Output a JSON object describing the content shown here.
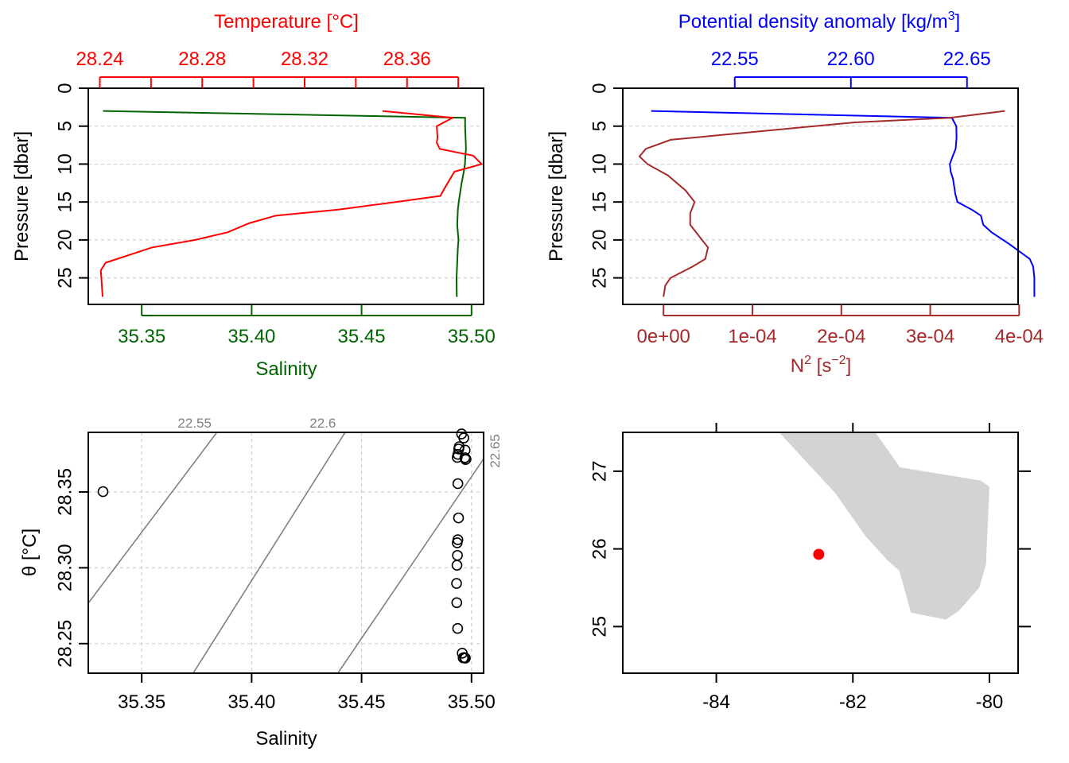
{
  "colors": {
    "temperature": "#ff0000",
    "salinity": "#006400",
    "density": "#0000ff",
    "n2": "#a52a2a",
    "isopycnal": "#808080",
    "land": "#d3d3d3",
    "station": "#ff0000",
    "grid": "#c8c8c8"
  },
  "chart_data": [
    {
      "type": "line",
      "panel": "temperature-salinity-profile",
      "top_axis_label": "Temperature [°C]",
      "bottom_axis_label": "Salinity",
      "ylabel": "Pressure [dbar]",
      "top_ticks": [
        "28.24",
        "28.28",
        "28.32",
        "28.36"
      ],
      "top_tick_values": [
        28.24,
        28.26,
        28.28,
        28.3,
        28.32,
        28.34,
        28.36,
        28.38
      ],
      "bottom_ticks": [
        "35.35",
        "35.40",
        "35.45",
        "35.50"
      ],
      "bottom_tick_values": [
        35.35,
        35.4,
        35.45,
        35.5
      ],
      "y_ticks": [
        "0",
        "5",
        "10",
        "15",
        "20",
        "25"
      ],
      "y_tick_values": [
        0,
        5,
        10,
        15,
        20,
        25
      ],
      "xlim_temperature": [
        28.2355,
        28.3899
      ],
      "xlim_salinity": [
        35.3257,
        35.5055
      ],
      "ylim": [
        0,
        28.5
      ],
      "y_reversed": true,
      "grid": true,
      "series": [
        {
          "name": "Temperature",
          "axis": "top",
          "x": [
            28.3504,
            28.3778,
            28.3716,
            28.3719,
            28.3716,
            28.3728,
            28.3859,
            28.3891,
            28.3785,
            28.375,
            28.373,
            28.3557,
            28.3331,
            28.3087,
            28.2983,
            28.2899,
            28.2772,
            28.2603,
            28.2423,
            28.2404,
            28.2408,
            28.2411
          ],
          "y": [
            3.0,
            3.9,
            5.0,
            6.5,
            7.2,
            8.0,
            8.9,
            10.0,
            11.0,
            13.0,
            14.2,
            15.0,
            16.0,
            16.8,
            17.8,
            19.0,
            20.0,
            21.0,
            23.0,
            24.0,
            26.0,
            27.5
          ]
        },
        {
          "name": "Salinity",
          "axis": "bottom",
          "x": [
            35.3324,
            35.4971,
            35.4971,
            35.4973,
            35.4975,
            35.4972,
            35.497,
            35.4965,
            35.4955,
            35.4942,
            35.4938,
            35.4935,
            35.4938,
            35.4941,
            35.4938,
            35.4935,
            35.4932,
            35.4933
          ],
          "y": [
            3.0,
            3.9,
            5.0,
            6.5,
            8.0,
            9.0,
            10.0,
            11.0,
            12.5,
            15.0,
            16.0,
            18.0,
            19.0,
            20.0,
            21.0,
            23.0,
            25.0,
            27.5
          ]
        }
      ]
    },
    {
      "type": "line",
      "panel": "density-n2-profile",
      "top_axis_label": "Potential density anomaly [kg/m",
      "top_axis_label_sup": "3",
      "top_axis_label_end": "]",
      "bottom_axis_label": "N",
      "bottom_axis_label_sup1": "2",
      "bottom_axis_label_mid": " [s",
      "bottom_axis_label_sup2": "−2",
      "bottom_axis_label_end": "]",
      "ylabel": "Pressure [dbar]",
      "top_ticks": [
        "22.55",
        "22.60",
        "22.65"
      ],
      "top_tick_values": [
        22.55,
        22.6,
        22.65
      ],
      "bottom_ticks": [
        "0e+00",
        "1e-04",
        "2e-04",
        "3e-04",
        "4e-04"
      ],
      "bottom_tick_values": [
        0,
        0.0001,
        0.0002,
        0.0003,
        0.0004
      ],
      "y_ticks": [
        "0",
        "5",
        "10",
        "15",
        "20",
        "25"
      ],
      "y_tick_values": [
        0,
        5,
        10,
        15,
        20,
        25
      ],
      "xlim_density": [
        22.5018,
        22.672
      ],
      "xlim_n2": [
        -4.58e-05,
        0.0003988
      ],
      "ylim": [
        0,
        28.5
      ],
      "y_reversed": true,
      "grid": true,
      "series": [
        {
          "name": "Potential density anomaly",
          "axis": "top",
          "x": [
            22.514,
            22.6435,
            22.6454,
            22.6455,
            22.6451,
            22.6438,
            22.6426,
            22.643,
            22.644,
            22.645,
            22.6459,
            22.652,
            22.656,
            22.657,
            22.6606,
            22.668,
            22.677,
            22.6785,
            22.679,
            22.679
          ],
          "y": [
            3.0,
            3.9,
            5.0,
            6.5,
            8.0,
            9.0,
            10.0,
            11.0,
            12.0,
            14.0,
            15.0,
            16.0,
            16.8,
            18.0,
            19.0,
            20.5,
            22.5,
            23.5,
            25.0,
            27.5
          ]
        },
        {
          "name": "N2",
          "axis": "bottom",
          "x": [
            0.000384,
            0.000322,
            0.000215,
            8e-05,
            8e-06,
            -2e-05,
            -2.7e-05,
            -1.8e-05,
            5e-06,
            2.5e-05,
            3.5e-05,
            3e-05,
            3e-05,
            4e-05,
            5e-05,
            4.7e-05,
            3.3e-05,
            8e-06,
            2e-06,
            0.0
          ],
          "y": [
            3.0,
            3.9,
            4.5,
            6.0,
            6.8,
            8.0,
            9.0,
            10.0,
            11.5,
            13.5,
            15.0,
            16.5,
            18.0,
            19.5,
            21.0,
            22.5,
            23.5,
            25.0,
            26.0,
            27.5
          ]
        }
      ]
    },
    {
      "type": "scatter",
      "panel": "ts-diagram",
      "xlabel": "Salinity",
      "ylabel_symbol": "θ",
      "ylabel_unit": " [°C]",
      "x_ticks": [
        "35.35",
        "35.40",
        "35.45",
        "35.50"
      ],
      "x_tick_values": [
        35.35,
        35.4,
        35.45,
        35.5
      ],
      "y_ticks": [
        "28.25",
        "28.30",
        "28.35"
      ],
      "y_tick_values": [
        28.25,
        28.3,
        28.35
      ],
      "xlim": [
        35.3257,
        35.5055
      ],
      "ylim": [
        28.2305,
        28.3893
      ],
      "grid": true,
      "isopycnals": [
        {
          "label": "22.55",
          "points": [
            [
              35.3257,
              28.2767
            ],
            [
              35.3842,
              28.3893
            ]
          ]
        },
        {
          "label": "22.6",
          "points": [
            [
              35.3734,
              28.2305
            ],
            [
              35.4425,
              28.3893
            ]
          ]
        },
        {
          "label": "22.65",
          "points": [
            [
              35.4392,
              28.2305
            ],
            [
              35.5055,
              28.3718
            ]
          ]
        }
      ],
      "points": {
        "x": [
          35.3324,
          35.4971,
          35.4973,
          35.4975,
          35.497,
          35.4965,
          35.4955,
          35.4942,
          35.4938,
          35.4935,
          35.4938,
          35.4941,
          35.4938,
          35.4935,
          35.4932,
          35.4933,
          35.4958,
          35.4968,
          35.4972,
          35.4962,
          35.4944,
          35.4934,
          35.4936,
          35.4937
        ],
        "y": [
          28.3502,
          28.3776,
          28.3714,
          28.3717,
          28.3726,
          28.3856,
          28.3883,
          28.3783,
          28.3748,
          28.3728,
          28.3555,
          28.3329,
          28.3185,
          28.3165,
          28.2897,
          28.277,
          28.2437,
          28.2408,
          28.2404,
          28.2406,
          28.3798,
          28.3017,
          28.3082,
          28.26
        ]
      }
    },
    {
      "type": "map",
      "panel": "station-map",
      "x_ticks": [
        "-84",
        "-82",
        "-80"
      ],
      "x_tick_values": [
        -84,
        -82,
        -80
      ],
      "y_ticks": [
        "25",
        "26",
        "27"
      ],
      "y_tick_values": [
        25,
        26,
        27
      ],
      "xlim": [
        -85.37,
        -79.58
      ],
      "ylim": [
        24.4,
        27.5
      ],
      "land_polygon": [
        [
          -83.08,
          27.5
        ],
        [
          -81.67,
          27.5
        ],
        [
          -81.31,
          27.05
        ],
        [
          -80.13,
          26.88
        ],
        [
          -80.0,
          26.8
        ],
        [
          -80.05,
          25.8
        ],
        [
          -80.15,
          25.5
        ],
        [
          -80.45,
          25.2
        ],
        [
          -80.64,
          25.09
        ],
        [
          -81.15,
          25.18
        ],
        [
          -81.32,
          25.72
        ],
        [
          -81.49,
          25.85
        ],
        [
          -81.82,
          26.17
        ],
        [
          -82.26,
          26.72
        ]
      ],
      "station": {
        "lon": -82.5,
        "lat": 25.93
      }
    }
  ]
}
